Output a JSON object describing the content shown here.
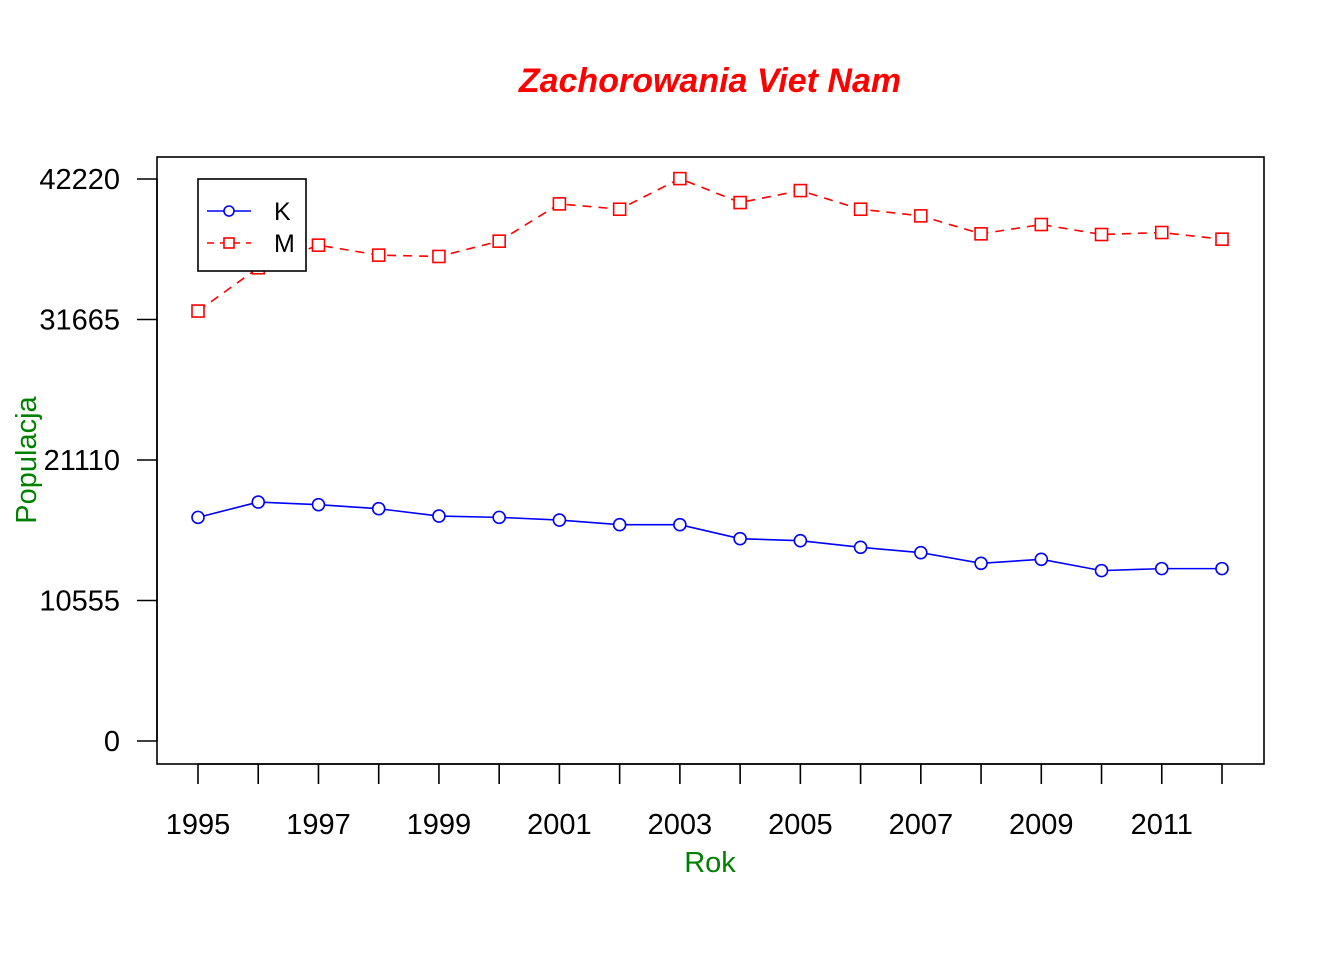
{
  "chart_data": {
    "type": "line",
    "title": "Zachorowania Viet Nam",
    "xlabel": "Rok",
    "ylabel": "Populacja",
    "x": [
      1995,
      1996,
      1997,
      1998,
      1999,
      2000,
      2001,
      2002,
      2003,
      2004,
      2005,
      2006,
      2007,
      2008,
      2009,
      2010,
      2011,
      2012
    ],
    "xlim": [
      1995,
      2012
    ],
    "ylim": [
      0,
      42220
    ],
    "x_ticks": [
      1995,
      1996,
      1997,
      1998,
      1999,
      2000,
      2001,
      2002,
      2003,
      2004,
      2005,
      2006,
      2007,
      2008,
      2009,
      2010,
      2011,
      2012
    ],
    "x_tick_labels": [
      "1995",
      "",
      "1997",
      "",
      "1999",
      "",
      "2001",
      "",
      "2003",
      "",
      "2005",
      "",
      "2007",
      "",
      "2009",
      "",
      "2011",
      ""
    ],
    "y_ticks": [
      0,
      10555,
      21110,
      31665,
      42220
    ],
    "y_tick_labels": [
      "0",
      "10555",
      "21110",
      "31665",
      "42220"
    ],
    "grid": false,
    "legend_position": "top-left",
    "series": [
      {
        "name": "K",
        "color": "#0000FF",
        "line_style": "solid",
        "marker": "circle",
        "values": [
          16800,
          17950,
          17750,
          17450,
          16900,
          16800,
          16600,
          16250,
          16250,
          15200,
          15050,
          14550,
          14150,
          13350,
          13650,
          12800,
          12950,
          12950
        ]
      },
      {
        "name": "M",
        "color": "#FF0000",
        "line_style": "dashed",
        "marker": "square",
        "values": [
          32300,
          35550,
          37250,
          36500,
          36400,
          37550,
          40350,
          39950,
          42250,
          40450,
          41350,
          39950,
          39450,
          38100,
          38800,
          38050,
          38200,
          37700
        ]
      }
    ],
    "title_color": "#FF0000",
    "label_color": "#008000"
  }
}
